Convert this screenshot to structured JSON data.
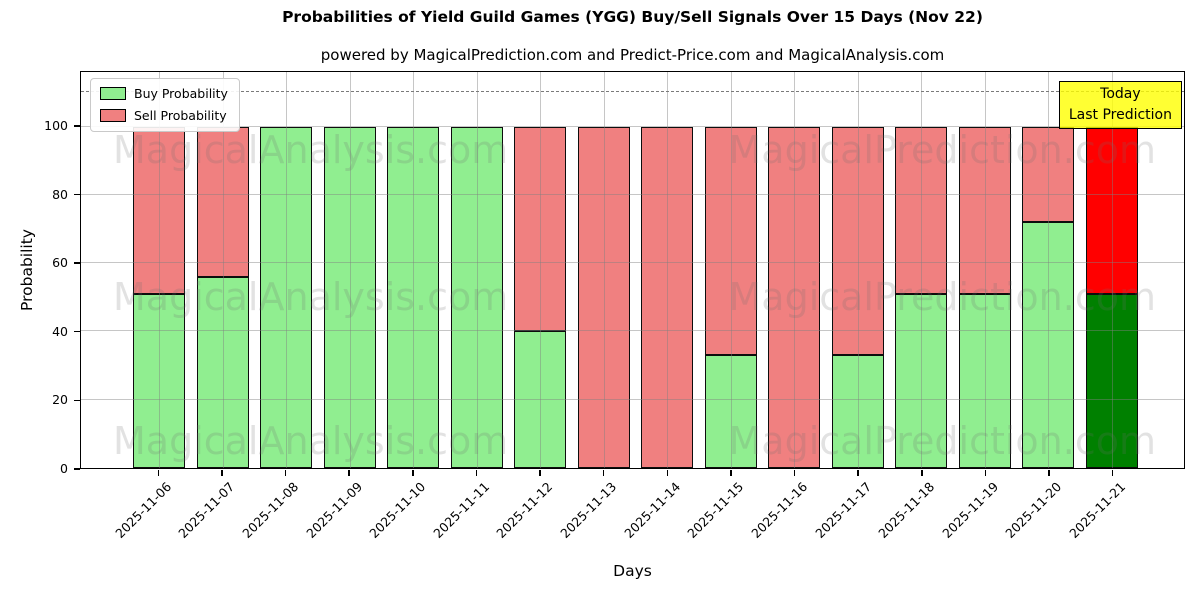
{
  "title": "Probabilities of Yield Guild Games (YGG) Buy/Sell Signals Over 15 Days (Nov 22)",
  "subtitle": "powered by MagicalPrediction.com and Predict-Price.com and MagicalAnalysis.com",
  "axes": {
    "ylabel": "Probability",
    "xlabel": "Days",
    "yticks": [
      0,
      20,
      40,
      60,
      80,
      100
    ],
    "ylim": [
      0,
      116
    ],
    "dashed_line_y": 110,
    "grid": "on"
  },
  "legend": [
    {
      "label": "Buy Probability",
      "color": "#90ee90"
    },
    {
      "label": "Sell Probability",
      "color": "#f08080"
    }
  ],
  "annotation_box": {
    "lines": [
      "Today",
      "Last Prediction"
    ],
    "bg": "#ffff00"
  },
  "watermarks": {
    "left": "MagicalAnalysis.com",
    "right": "MagicalPrediction.com",
    "rows": 3
  },
  "chart_data": {
    "type": "bar",
    "stacked": true,
    "categories": [
      "2025-11-06",
      "2025-11-07",
      "2025-11-08",
      "2025-11-09",
      "2025-11-10",
      "2025-11-11",
      "2025-11-12",
      "2025-11-13",
      "2025-11-14",
      "2025-11-15",
      "2025-11-16",
      "2025-11-17",
      "2025-11-18",
      "2025-11-19",
      "2025-11-20",
      "2025-11-21"
    ],
    "series": [
      {
        "name": "Buy Probability",
        "color": "#90ee90",
        "values": [
          51,
          56,
          100,
          100,
          100,
          100,
          40,
          0,
          0,
          33,
          0,
          33,
          51,
          51,
          72,
          51
        ]
      },
      {
        "name": "Sell Probability",
        "color": "#f08080",
        "values": [
          49,
          44,
          0,
          0,
          0,
          0,
          60,
          100,
          100,
          67,
          100,
          67,
          49,
          49,
          28,
          49
        ]
      }
    ],
    "today_index": 15,
    "today_colors": {
      "buy": "#008000",
      "sell": "#ff0000"
    },
    "legend_position": "upper-left"
  }
}
